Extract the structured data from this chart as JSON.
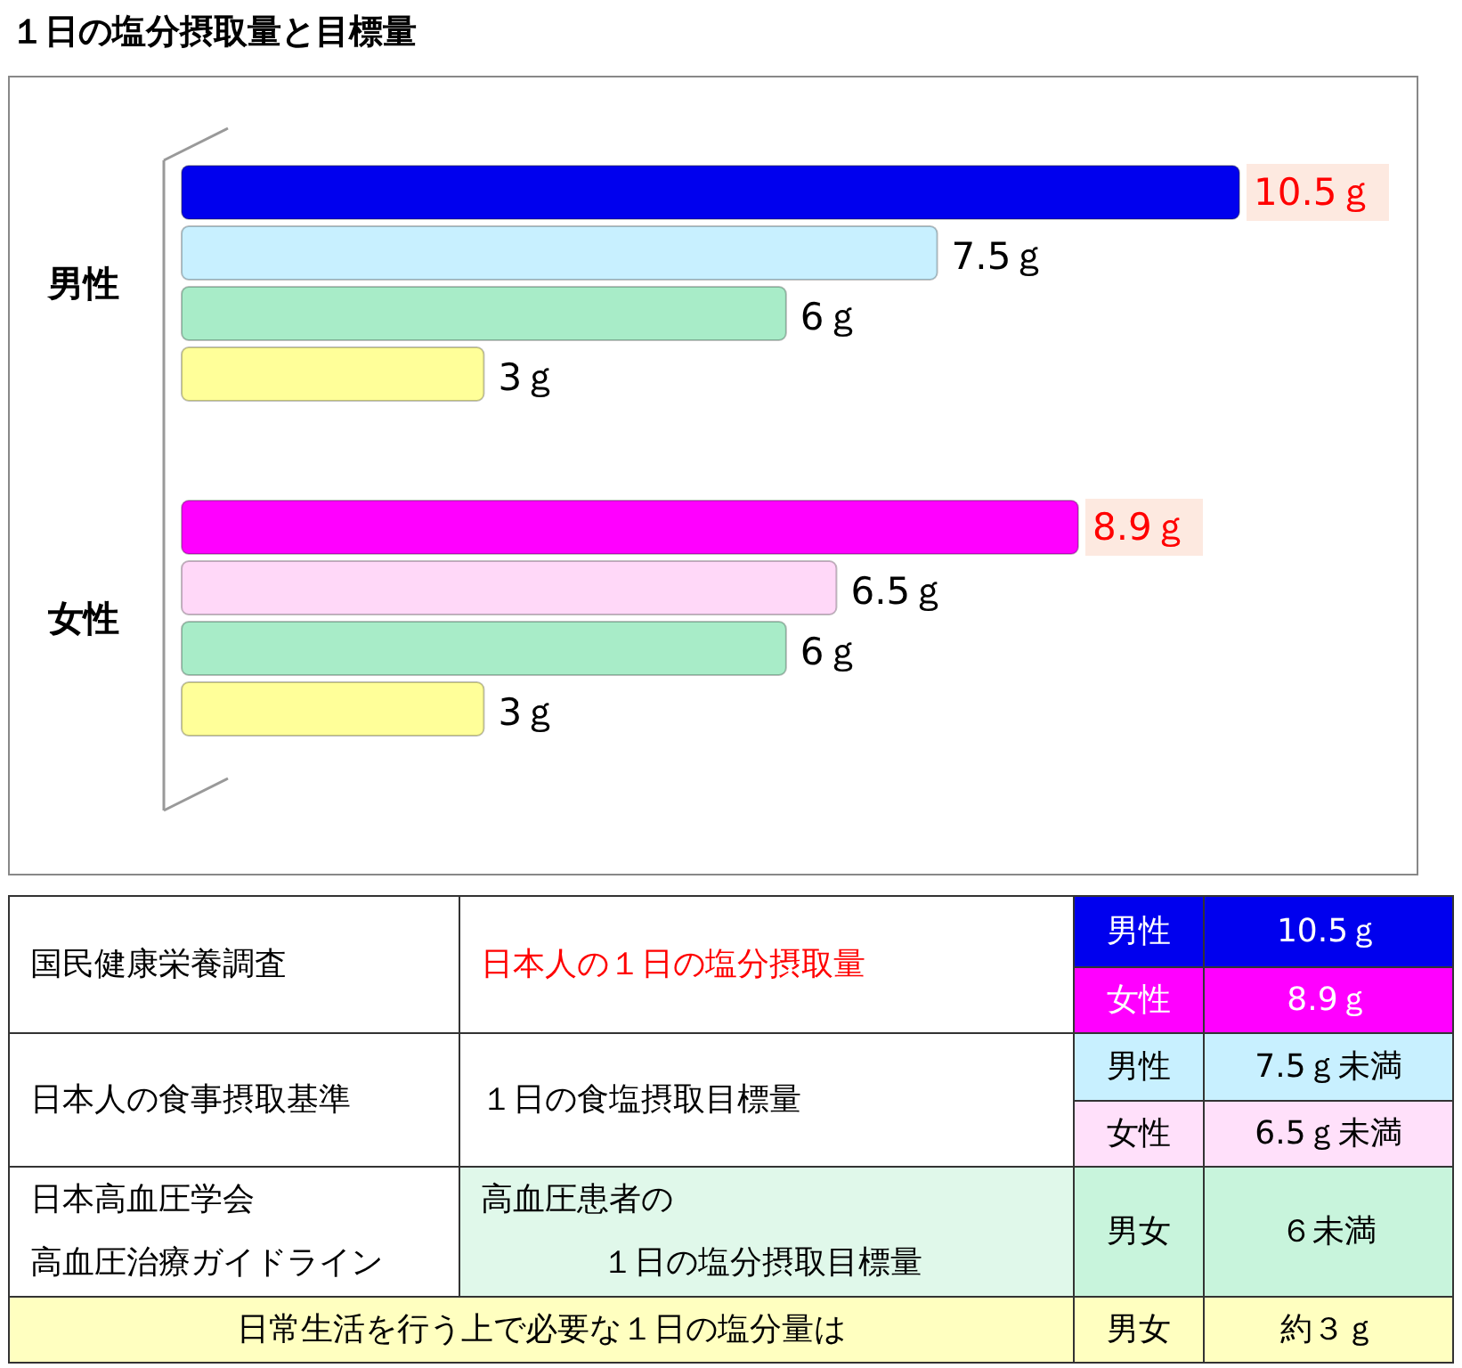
{
  "chart_data": {
    "type": "bar",
    "orientation": "horizontal",
    "title": "１日の塩分摂取量と目標量",
    "categories": [
      "男性",
      "女性"
    ],
    "series": [
      {
        "colors": [
          "#0000ee",
          "#ff00ff"
        ],
        "values": [
          10.5,
          8.9
        ],
        "value_labels": [
          "10.5ｇ",
          "8.9ｇ"
        ]
      },
      {
        "colors": [
          "#c8f0ff",
          "#ffd8f8"
        ],
        "values": [
          7.5,
          6.5
        ],
        "value_labels": [
          "7.5ｇ",
          "6.5ｇ"
        ]
      },
      {
        "colors": [
          "#a8ecc8",
          "#a8ecc8"
        ],
        "values": [
          6,
          6
        ],
        "value_labels": [
          "6ｇ",
          "6ｇ"
        ]
      },
      {
        "colors": [
          "#ffff99",
          "#ffff99"
        ],
        "values": [
          3,
          3
        ],
        "value_labels": [
          "3ｇ",
          "3ｇ"
        ]
      }
    ],
    "annotations": [
      "国民健康栄養調査",
      "日本人の１日の塩分摂取量",
      "男性",
      "10.5ｇ",
      "女性",
      "8.9ｇ",
      "日本人の食事摂取基準",
      "１日の食塩摂取目標量",
      "男性",
      "7.5ｇ未満",
      "女性",
      "6.5ｇ未満",
      "日本高血圧学会",
      "高血圧治療ガイドライン",
      "高血圧患者の",
      "１日の塩分摂取目標量",
      "男女",
      "６未満",
      "日常生活を行う上で必要な１日の塩分量は",
      "男女",
      "約３ｇ"
    ]
  }
}
